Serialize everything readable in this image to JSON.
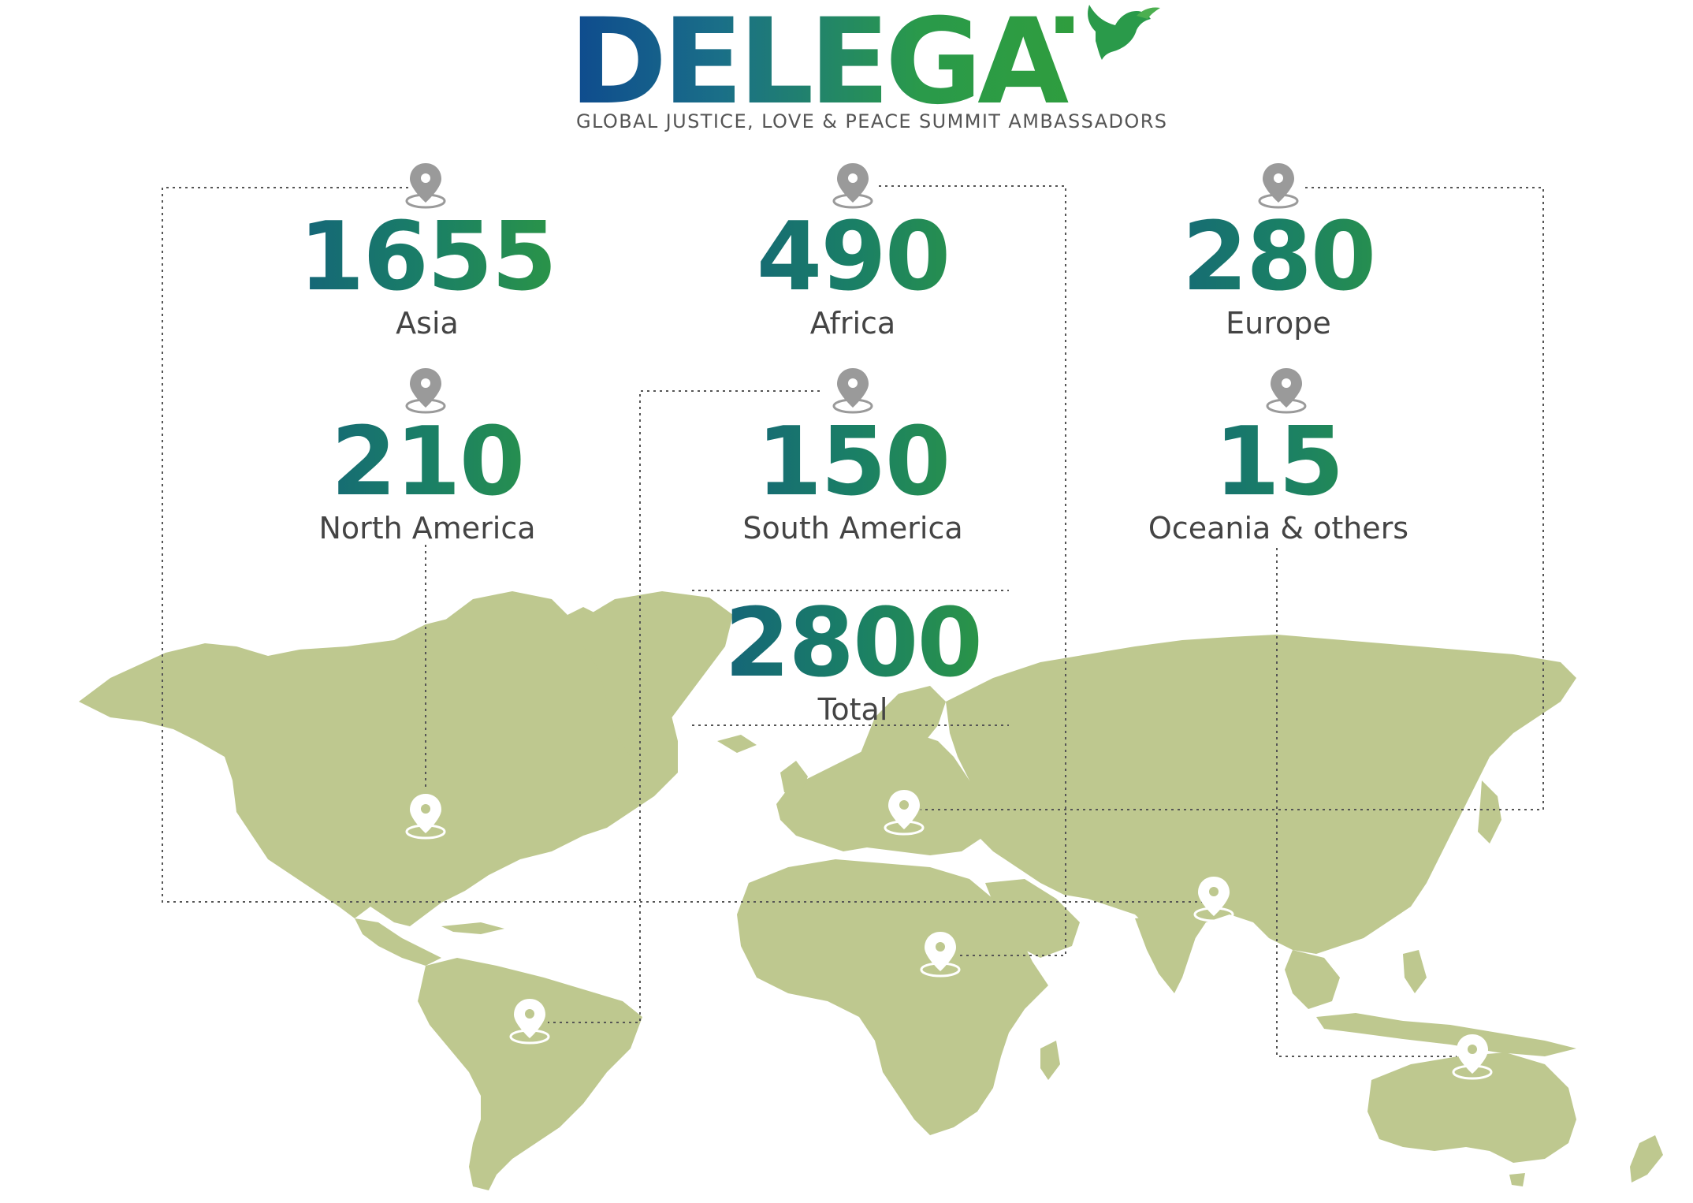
{
  "header": {
    "title": "DELEGATES",
    "subtitle": "GLOBAL JUSTICE, LOVE & PEACE SUMMIT AMBASSADORS",
    "logo_icon": "dove-icon"
  },
  "stats": [
    {
      "id": "asia",
      "value": "1655",
      "label": "Asia"
    },
    {
      "id": "africa",
      "value": "490",
      "label": "Africa"
    },
    {
      "id": "europe",
      "value": "280",
      "label": "Europe"
    },
    {
      "id": "north-america",
      "value": "210",
      "label": "North America"
    },
    {
      "id": "south-america",
      "value": "150",
      "label": "South America"
    },
    {
      "id": "oceania",
      "value": "15",
      "label": "Oceania & others"
    }
  ],
  "total": {
    "value": "2800",
    "label": "Total"
  },
  "colors": {
    "map_land": "#bec88f",
    "pin_gray": "#9a9a9a",
    "pin_white": "#ffffff",
    "gradient_start": "#135e7d",
    "gradient_end": "#2f9a3f",
    "label_text": "#444444",
    "connector": "#555555"
  },
  "icons": {
    "marker": "map-pin-icon"
  }
}
